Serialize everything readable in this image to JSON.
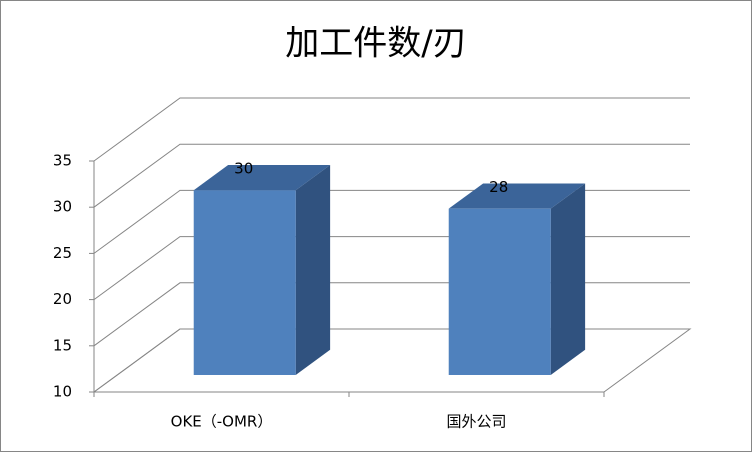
{
  "chart_data": {
    "type": "bar",
    "title": "加工件数/刃",
    "categories": [
      "OKE（-OMR）",
      "国外公司"
    ],
    "values": [
      30,
      28
    ],
    "color": "#4f81bd",
    "ylim": [
      10,
      35
    ],
    "yticks": [
      10,
      15,
      20,
      25,
      30,
      35
    ],
    "grid": true
  }
}
